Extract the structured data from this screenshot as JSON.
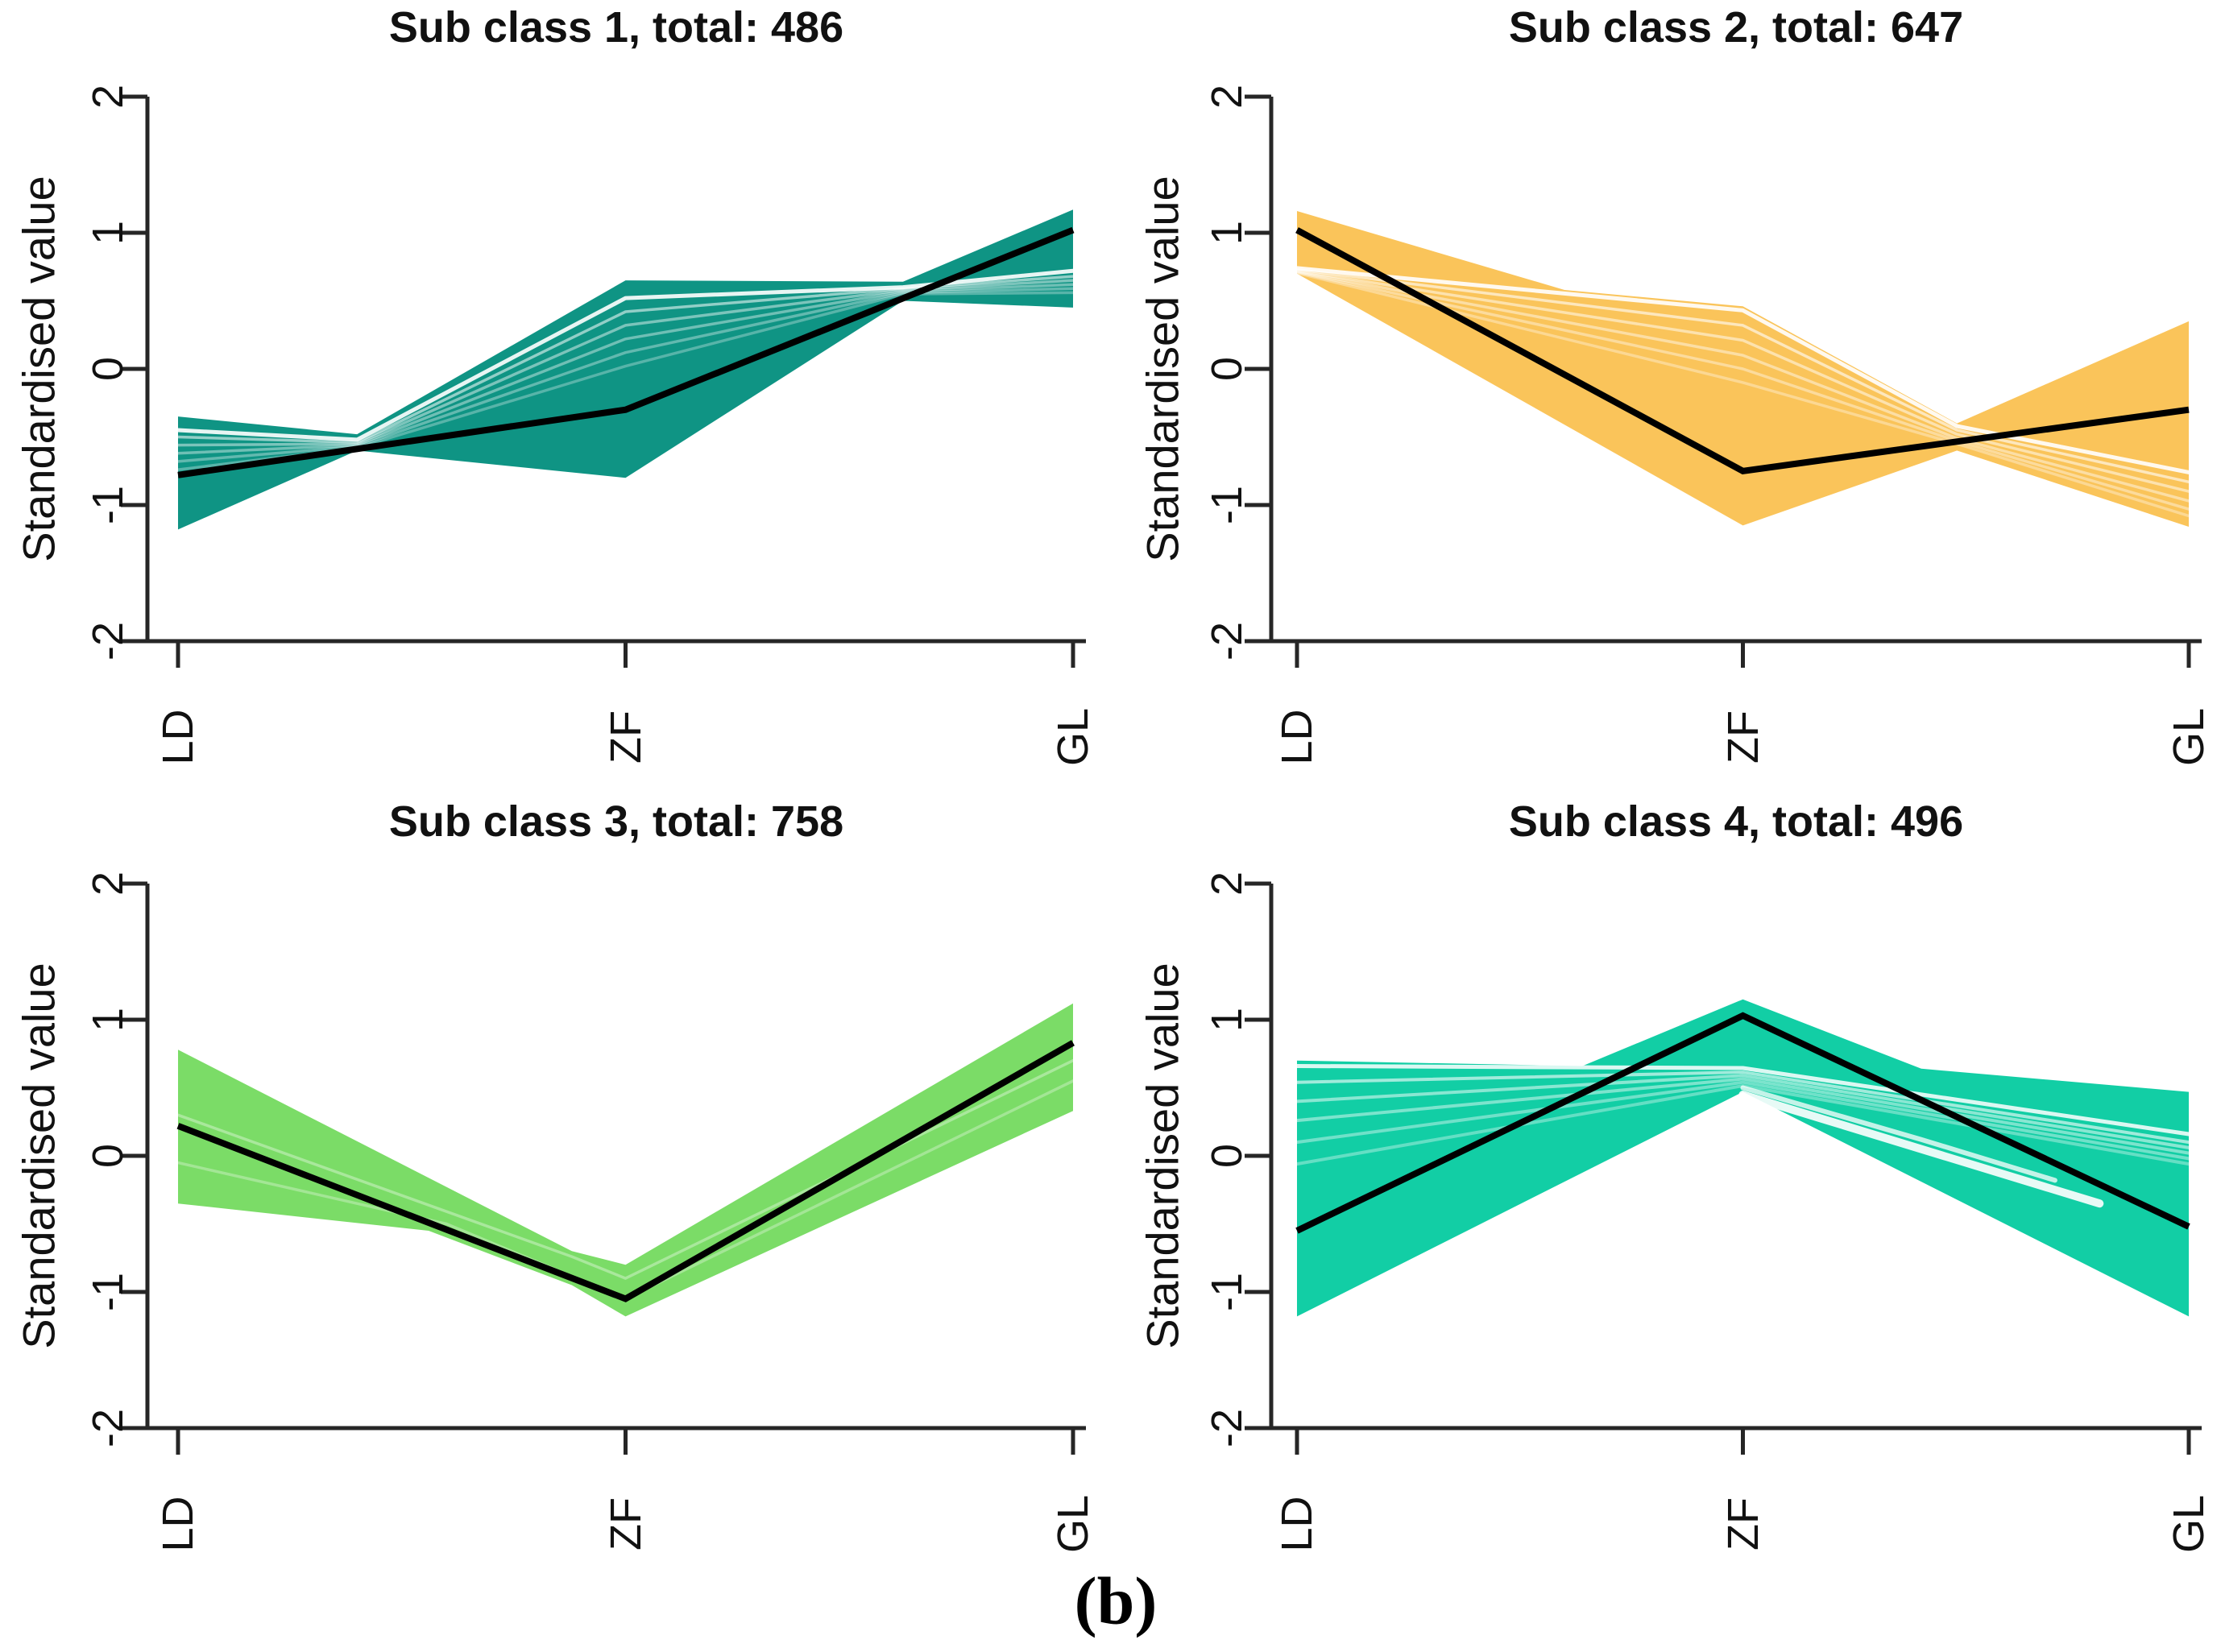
{
  "caption": "(b)",
  "chart_data": {
    "type": "area",
    "x_categories": [
      "LD",
      "ZF",
      "GL"
    ],
    "x_positions": [
      0,
      0.5,
      1
    ],
    "ylabel": "Standardised value",
    "yticks": [
      "2",
      "1",
      "0",
      "-1",
      "-2"
    ],
    "ytick_values": [
      2,
      1,
      0,
      -1,
      -2
    ],
    "ylim": [
      -2,
      2
    ],
    "grid": false,
    "legend": "none",
    "mean_line_color": "#000000",
    "streak_color": "#ffffff",
    "axis_color": "#262626",
    "panels": [
      {
        "title": "Sub class 1, total: 486",
        "total": 486,
        "band_color": "#0F9484",
        "mean": [
          [
            0,
            -0.78
          ],
          [
            0.5,
            -0.3
          ],
          [
            1,
            1.02
          ]
        ],
        "upper": [
          [
            0,
            -0.35
          ],
          [
            0.2,
            -0.48
          ],
          [
            0.5,
            0.65
          ],
          [
            0.81,
            0.64
          ],
          [
            1,
            1.17
          ]
        ],
        "lower": [
          [
            0,
            -1.18
          ],
          [
            0.2,
            -0.6
          ],
          [
            0.5,
            -0.8
          ],
          [
            0.81,
            0.5
          ],
          [
            1,
            0.45
          ]
        ],
        "streaks": [
          {
            "pts": [
              [
                0,
                -0.45
              ],
              [
                0.2,
                -0.52
              ],
              [
                0.5,
                0.52
              ],
              [
                0.81,
                0.6
              ],
              [
                1,
                0.72
              ]
            ],
            "w": 5,
            "o": 0.9
          },
          {
            "pts": [
              [
                0,
                -0.5
              ],
              [
                0.2,
                -0.54
              ],
              [
                0.5,
                0.42
              ],
              [
                0.81,
                0.59
              ],
              [
                1,
                0.68
              ]
            ],
            "w": 3.5,
            "o": 0.55
          },
          {
            "pts": [
              [
                0,
                -0.56
              ],
              [
                0.2,
                -0.55
              ],
              [
                0.5,
                0.32
              ],
              [
                0.81,
                0.58
              ],
              [
                1,
                0.65
              ]
            ],
            "w": 3.5,
            "o": 0.45
          },
          {
            "pts": [
              [
                0,
                -0.62
              ],
              [
                0.2,
                -0.56
              ],
              [
                0.5,
                0.22
              ],
              [
                0.81,
                0.57
              ],
              [
                1,
                0.62
              ]
            ],
            "w": 3.5,
            "o": 0.4
          },
          {
            "pts": [
              [
                0,
                -0.68
              ],
              [
                0.2,
                -0.57
              ],
              [
                0.5,
                0.12
              ],
              [
                0.81,
                0.56
              ],
              [
                1,
                0.59
              ]
            ],
            "w": 3.5,
            "o": 0.35
          },
          {
            "pts": [
              [
                0,
                -0.74
              ],
              [
                0.2,
                -0.58
              ],
              [
                0.5,
                0.02
              ],
              [
                0.81,
                0.55
              ],
              [
                1,
                0.56
              ]
            ],
            "w": 3.5,
            "o": 0.3
          }
        ]
      },
      {
        "title": "Sub class 2, total: 647",
        "total": 647,
        "band_color": "#FAC45A",
        "mean": [
          [
            0,
            1.02
          ],
          [
            0.5,
            -0.75
          ],
          [
            1,
            -0.3
          ]
        ],
        "upper": [
          [
            0,
            1.16
          ],
          [
            0.3,
            0.58
          ],
          [
            0.5,
            0.46
          ],
          [
            0.74,
            -0.4
          ],
          [
            1,
            0.35
          ]
        ],
        "lower": [
          [
            0,
            0.7
          ],
          [
            0.5,
            -1.15
          ],
          [
            0.74,
            -0.6
          ],
          [
            1,
            -1.16
          ]
        ],
        "streaks": [
          {
            "pts": [
              [
                0,
                0.74
              ],
              [
                0.5,
                0.43
              ],
              [
                0.74,
                -0.42
              ],
              [
                1,
                -0.76
              ]
            ],
            "w": 5,
            "o": 0.9
          },
          {
            "pts": [
              [
                0,
                0.73
              ],
              [
                0.5,
                0.32
              ],
              [
                0.74,
                -0.45
              ],
              [
                1,
                -0.83
              ]
            ],
            "w": 3.5,
            "o": 0.6
          },
          {
            "pts": [
              [
                0,
                0.72
              ],
              [
                0.5,
                0.21
              ],
              [
                0.74,
                -0.48
              ],
              [
                1,
                -0.9
              ]
            ],
            "w": 3.5,
            "o": 0.5
          },
          {
            "pts": [
              [
                0,
                0.715
              ],
              [
                0.5,
                0.1
              ],
              [
                0.74,
                -0.51
              ],
              [
                1,
                -0.97
              ]
            ],
            "w": 3.5,
            "o": 0.45
          },
          {
            "pts": [
              [
                0,
                0.71
              ],
              [
                0.5,
                0.0
              ],
              [
                0.74,
                -0.53
              ],
              [
                1,
                -1.03
              ]
            ],
            "w": 3.5,
            "o": 0.4
          },
          {
            "pts": [
              [
                0,
                0.705
              ],
              [
                0.5,
                -0.1
              ],
              [
                0.74,
                -0.55
              ],
              [
                1,
                -1.08
              ]
            ],
            "w": 3.5,
            "o": 0.35
          }
        ]
      },
      {
        "title": "Sub class 3, total: 758",
        "total": 758,
        "band_color": "#7BDC67",
        "mean": [
          [
            0,
            0.22
          ],
          [
            0.5,
            -1.05
          ],
          [
            1,
            0.83
          ]
        ],
        "upper": [
          [
            0,
            0.78
          ],
          [
            0.44,
            -0.7
          ],
          [
            0.5,
            -0.8
          ],
          [
            1,
            1.12
          ]
        ],
        "lower": [
          [
            0,
            -0.35
          ],
          [
            0.28,
            -0.55
          ],
          [
            0.44,
            -0.95
          ],
          [
            0.5,
            -1.18
          ],
          [
            1,
            0.33
          ]
        ],
        "streaks": [
          {
            "pts": [
              [
                0,
                0.3
              ],
              [
                0.44,
                -0.74
              ],
              [
                0.5,
                -0.9
              ],
              [
                1,
                0.7
              ]
            ],
            "w": 3.5,
            "o": 0.35
          },
          {
            "pts": [
              [
                0,
                -0.05
              ],
              [
                0.3,
                -0.5
              ],
              [
                0.5,
                -1.05
              ],
              [
                1,
                0.55
              ]
            ],
            "w": 3.5,
            "o": 0.3
          }
        ]
      },
      {
        "title": "Sub class 4, total: 496",
        "total": 496,
        "band_color": "#12CEA5",
        "mean": [
          [
            0,
            -0.55
          ],
          [
            0.5,
            1.03
          ],
          [
            1,
            -0.52
          ]
        ],
        "upper": [
          [
            0,
            0.7
          ],
          [
            0.32,
            0.66
          ],
          [
            0.5,
            1.15
          ],
          [
            0.7,
            0.64
          ],
          [
            1,
            0.47
          ]
        ],
        "lower": [
          [
            0,
            -1.18
          ],
          [
            0.5,
            0.47
          ],
          [
            1,
            -1.18
          ]
        ],
        "streaks": [
          {
            "pts": [
              [
                0,
                0.66
              ],
              [
                0.5,
                0.645
              ],
              [
                1,
                0.16
              ]
            ],
            "w": 5,
            "o": 0.85
          },
          {
            "pts": [
              [
                0,
                0.54
              ],
              [
                0.5,
                0.615
              ],
              [
                1,
                0.1
              ]
            ],
            "w": 4,
            "o": 0.6
          },
          {
            "pts": [
              [
                0,
                0.4
              ],
              [
                0.5,
                0.59
              ],
              [
                1,
                0.06
              ]
            ],
            "w": 4,
            "o": 0.5
          },
          {
            "pts": [
              [
                0,
                0.26
              ],
              [
                0.5,
                0.565
              ],
              [
                1,
                0.02
              ]
            ],
            "w": 4,
            "o": 0.45
          },
          {
            "pts": [
              [
                0,
                0.1
              ],
              [
                0.5,
                0.54
              ],
              [
                1,
                -0.02
              ]
            ],
            "w": 4,
            "o": 0.4
          },
          {
            "pts": [
              [
                0,
                -0.06
              ],
              [
                0.5,
                0.515
              ],
              [
                1,
                -0.06
              ]
            ],
            "w": 4,
            "o": 0.35
          },
          {
            "pts": [
              [
                0.5,
                0.45
              ],
              [
                0.75,
                -0.05
              ],
              [
                0.9,
                -0.35
              ]
            ],
            "w": 10,
            "o": 0.9
          },
          {
            "pts": [
              [
                0.5,
                0.5
              ],
              [
                0.7,
                0.12
              ],
              [
                0.85,
                -0.18
              ]
            ],
            "w": 6,
            "o": 0.75
          }
        ]
      }
    ]
  }
}
